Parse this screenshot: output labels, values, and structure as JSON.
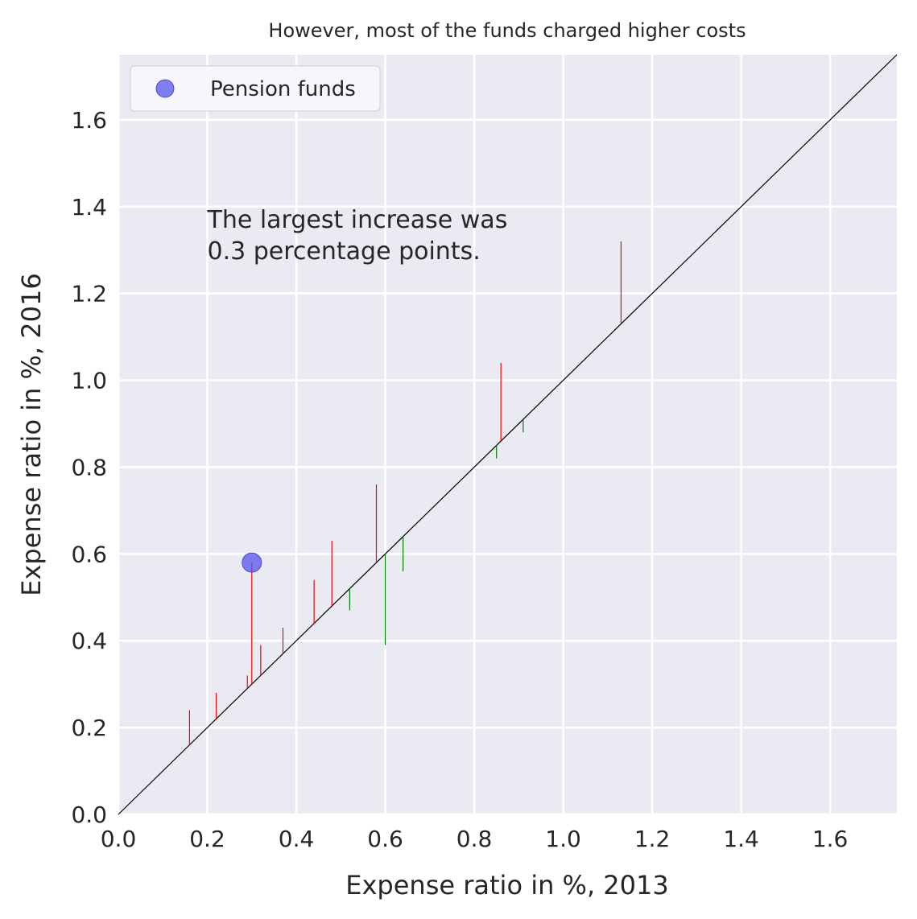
{
  "chart_data": {
    "type": "scatter",
    "title": "However, most of the funds charged higher costs",
    "xlabel": "Expense ratio in %, 2013",
    "ylabel": "Expense ratio in %, 2016",
    "xlim": [
      0.0,
      1.75
    ],
    "ylim": [
      0.0,
      1.75
    ],
    "x_ticks": [
      "0.0",
      "0.2",
      "0.4",
      "0.6",
      "0.8",
      "1.0",
      "1.2",
      "1.4",
      "1.6"
    ],
    "y_ticks": [
      "0.0",
      "0.2",
      "0.4",
      "0.6",
      "0.8",
      "1.0",
      "1.2",
      "1.4",
      "1.6"
    ],
    "grid": true,
    "background_color": "#eaeaf2",
    "diagonal_reference_line": true,
    "annotation": {
      "lines": [
        "The largest increase was",
        "0.3 percentage points."
      ],
      "x": 0.2,
      "y": 1.37
    },
    "legend": {
      "placement": "top-left",
      "entries": [
        {
          "label": "Pension funds",
          "color": "#5555ee"
        }
      ]
    },
    "increase_color": "#ff0000",
    "decrease_color": "#008000",
    "series": [
      {
        "name": "Pension funds",
        "highlight_point": {
          "x": 0.3,
          "y": 0.58
        },
        "changes": [
          {
            "x": 0.16,
            "y2013": 0.16,
            "y2016": 0.24
          },
          {
            "x": 0.22,
            "y2013": 0.22,
            "y2016": 0.28
          },
          {
            "x": 0.29,
            "y2013": 0.29,
            "y2016": 0.32
          },
          {
            "x": 0.3,
            "y2013": 0.3,
            "y2016": 0.58
          },
          {
            "x": 0.32,
            "y2013": 0.32,
            "y2016": 0.39
          },
          {
            "x": 0.37,
            "y2013": 0.37,
            "y2016": 0.43
          },
          {
            "x": 0.44,
            "y2013": 0.44,
            "y2016": 0.54
          },
          {
            "x": 0.48,
            "y2013": 0.48,
            "y2016": 0.63
          },
          {
            "x": 0.52,
            "y2013": 0.52,
            "y2016": 0.47
          },
          {
            "x": 0.58,
            "y2013": 0.58,
            "y2016": 0.76
          },
          {
            "x": 0.6,
            "y2013": 0.6,
            "y2016": 0.39
          },
          {
            "x": 0.64,
            "y2013": 0.64,
            "y2016": 0.56
          },
          {
            "x": 0.85,
            "y2013": 0.85,
            "y2016": 0.82
          },
          {
            "x": 0.86,
            "y2013": 0.86,
            "y2016": 1.04
          },
          {
            "x": 0.91,
            "y2013": 0.91,
            "y2016": 0.88
          },
          {
            "x": 1.13,
            "y2013": 1.13,
            "y2016": 1.32
          }
        ]
      }
    ]
  }
}
